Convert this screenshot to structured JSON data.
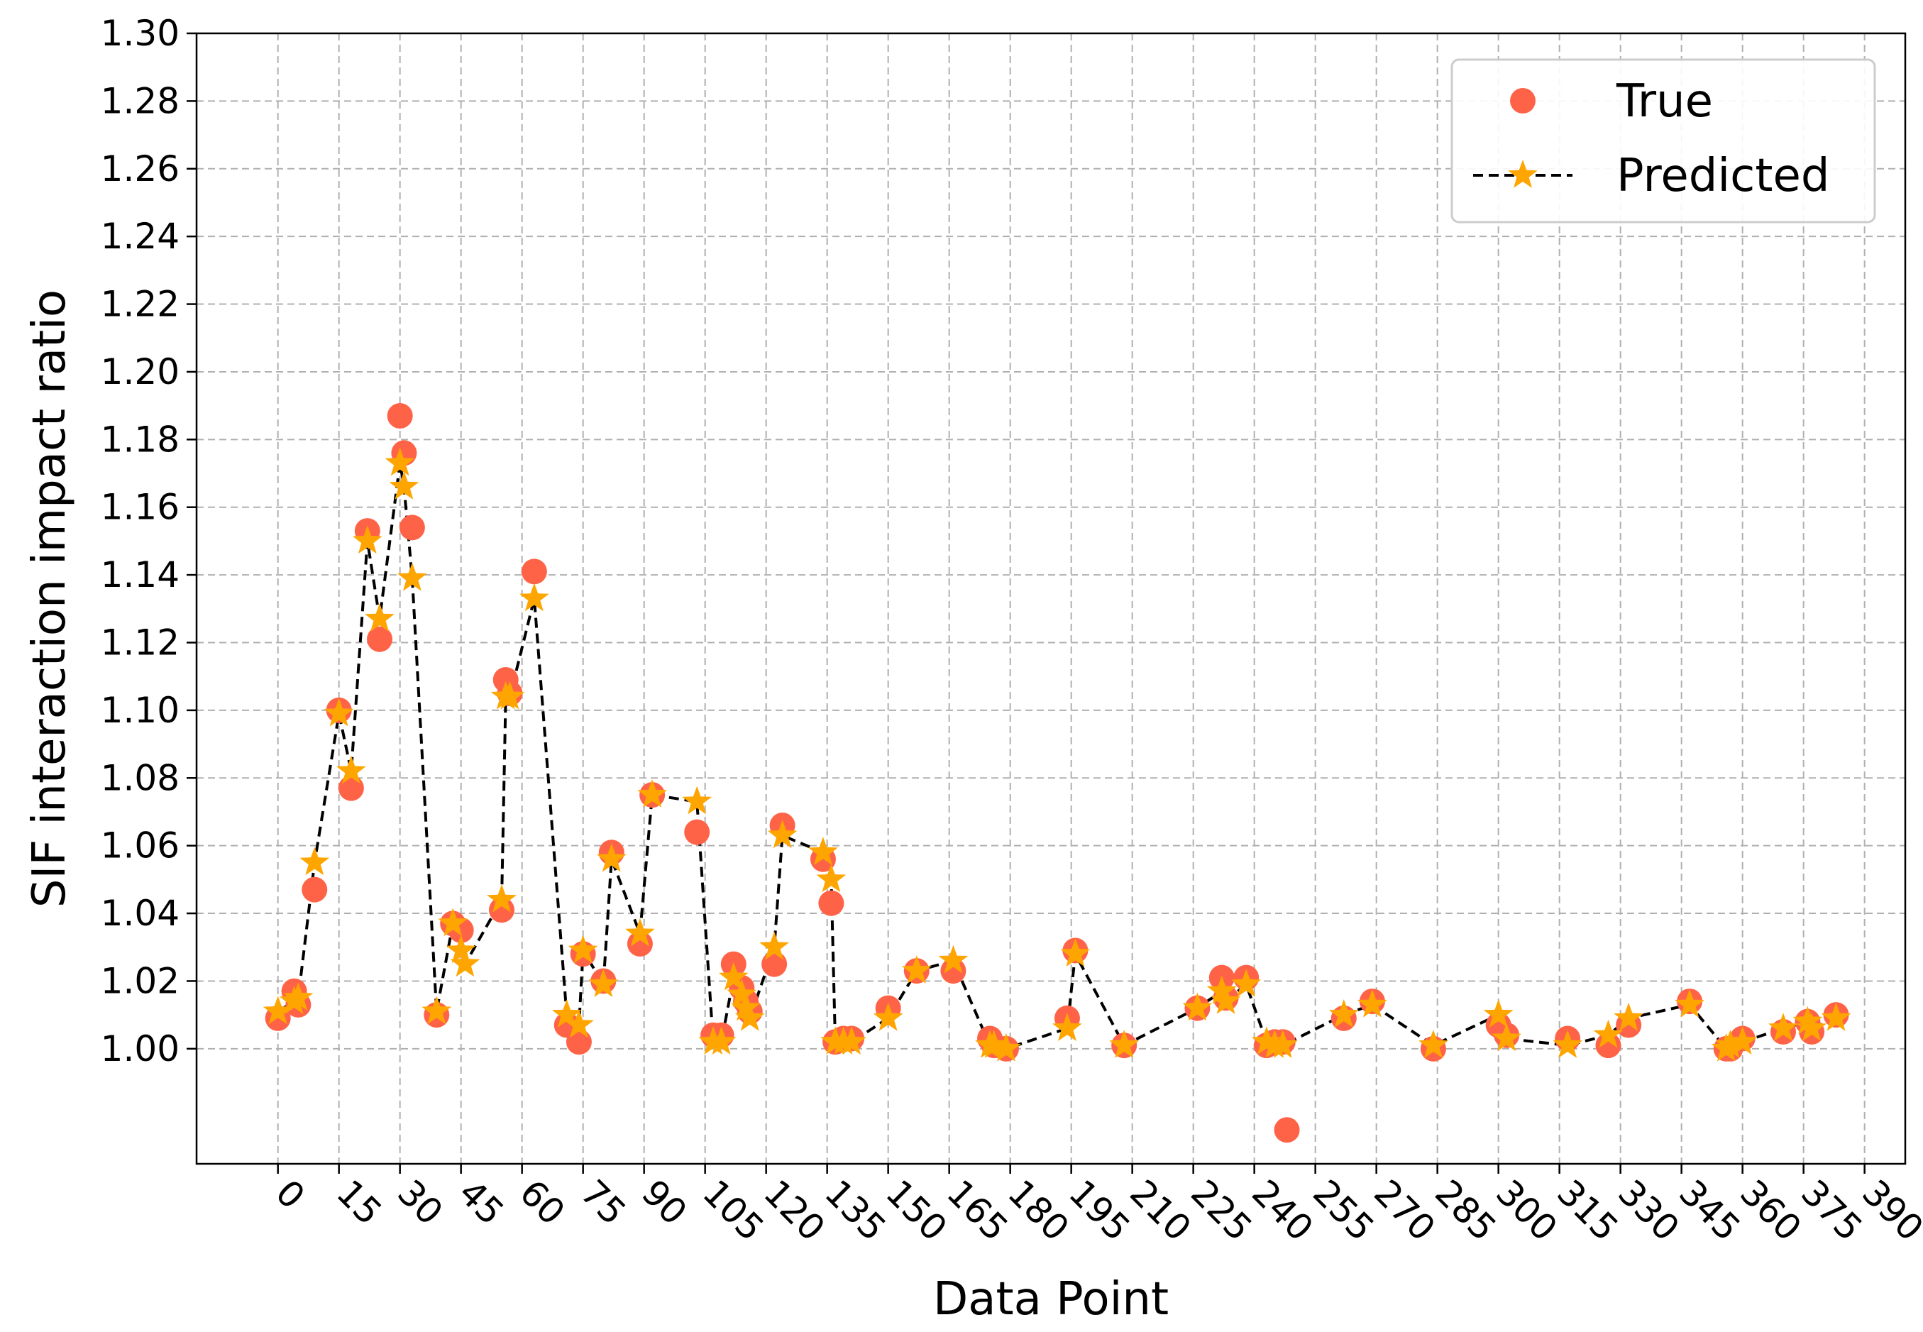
{
  "chart_data": {
    "type": "scatter",
    "title": "",
    "xlabel": "Data Point",
    "ylabel": "SIF interaction impact ratio",
    "xlim": [
      -20,
      400
    ],
    "ylim": [
      0.966,
      1.3
    ],
    "xticks": [
      0,
      15,
      30,
      45,
      60,
      75,
      90,
      105,
      120,
      135,
      150,
      165,
      180,
      195,
      210,
      225,
      240,
      255,
      270,
      285,
      300,
      315,
      330,
      345,
      360,
      375,
      390
    ],
    "yticks": [
      "1.00",
      "1.02",
      "1.04",
      "1.06",
      "1.08",
      "1.10",
      "1.12",
      "1.14",
      "1.16",
      "1.18",
      "1.20",
      "1.22",
      "1.24",
      "1.26",
      "1.28",
      "1.30"
    ],
    "grid": true,
    "legend_position": "top-right",
    "colors": {
      "true": "#ff6347",
      "predicted_line": "#000000",
      "predicted_marker": "#ffa500"
    },
    "series": [
      {
        "name": "True",
        "style": "circle",
        "points": [
          [
            0,
            1.009
          ],
          [
            4,
            1.017
          ],
          [
            5,
            1.013
          ],
          [
            9,
            1.047
          ],
          [
            15,
            1.1
          ],
          [
            18,
            1.077
          ],
          [
            22,
            1.153
          ],
          [
            25,
            1.121
          ],
          [
            30,
            1.187
          ],
          [
            31,
            1.176
          ],
          [
            33,
            1.154
          ],
          [
            39,
            1.01
          ],
          [
            43,
            1.037
          ],
          [
            45,
            1.035
          ],
          [
            55,
            1.041
          ],
          [
            56,
            1.109
          ],
          [
            57,
            1.105
          ],
          [
            63,
            1.141
          ],
          [
            71,
            1.007
          ],
          [
            74,
            1.002
          ],
          [
            75,
            1.028
          ],
          [
            80,
            1.02
          ],
          [
            82,
            1.058
          ],
          [
            89,
            1.031
          ],
          [
            92,
            1.075
          ],
          [
            103,
            1.064
          ],
          [
            107,
            1.004
          ],
          [
            109,
            1.004
          ],
          [
            112,
            1.025
          ],
          [
            114,
            1.018
          ],
          [
            115,
            1.014
          ],
          [
            116,
            1.011
          ],
          [
            122,
            1.025
          ],
          [
            124,
            1.066
          ],
          [
            134,
            1.056
          ],
          [
            136,
            1.043
          ],
          [
            137,
            1.002
          ],
          [
            139,
            1.003
          ],
          [
            141,
            1.003
          ],
          [
            150,
            1.012
          ],
          [
            157,
            1.023
          ],
          [
            166,
            1.023
          ],
          [
            175,
            1.003
          ],
          [
            176,
            1.001
          ],
          [
            179,
            1.0
          ],
          [
            194,
            1.009
          ],
          [
            196,
            1.029
          ],
          [
            208,
            1.001
          ],
          [
            226,
            1.012
          ],
          [
            232,
            1.021
          ],
          [
            233,
            1.015
          ],
          [
            238,
            1.021
          ],
          [
            243,
            1.001
          ],
          [
            245,
            1.002
          ],
          [
            247,
            1.002
          ],
          [
            248,
            0.976
          ],
          [
            262,
            1.009
          ],
          [
            269,
            1.014
          ],
          [
            284,
            1.0
          ],
          [
            300,
            1.007
          ],
          [
            302,
            1.004
          ],
          [
            317,
            1.003
          ],
          [
            327,
            1.001
          ],
          [
            332,
            1.007
          ],
          [
            347,
            1.014
          ],
          [
            356,
            1.0
          ],
          [
            357,
            1.0
          ],
          [
            360,
            1.003
          ],
          [
            370,
            1.005
          ],
          [
            376,
            1.008
          ],
          [
            377,
            1.005
          ],
          [
            383,
            1.01
          ]
        ]
      },
      {
        "name": "Predicted",
        "style": "dashed-line-star",
        "points": [
          [
            0,
            1.011
          ],
          [
            4,
            1.014
          ],
          [
            5,
            1.015
          ],
          [
            9,
            1.055
          ],
          [
            15,
            1.099
          ],
          [
            18,
            1.082
          ],
          [
            22,
            1.15
          ],
          [
            25,
            1.127
          ],
          [
            30,
            1.173
          ],
          [
            31,
            1.166
          ],
          [
            33,
            1.139
          ],
          [
            39,
            1.011
          ],
          [
            43,
            1.037
          ],
          [
            45,
            1.029
          ],
          [
            46,
            1.025
          ],
          [
            55,
            1.044
          ],
          [
            56,
            1.104
          ],
          [
            57,
            1.104
          ],
          [
            63,
            1.133
          ],
          [
            71,
            1.01
          ],
          [
            74,
            1.007
          ],
          [
            75,
            1.029
          ],
          [
            80,
            1.019
          ],
          [
            82,
            1.056
          ],
          [
            89,
            1.034
          ],
          [
            92,
            1.075
          ],
          [
            103,
            1.073
          ],
          [
            107,
            1.002
          ],
          [
            109,
            1.002
          ],
          [
            112,
            1.021
          ],
          [
            114,
            1.016
          ],
          [
            115,
            1.012
          ],
          [
            116,
            1.009
          ],
          [
            122,
            1.03
          ],
          [
            124,
            1.063
          ],
          [
            134,
            1.058
          ],
          [
            136,
            1.05
          ],
          [
            137,
            1.002
          ],
          [
            139,
            1.002
          ],
          [
            141,
            1.002
          ],
          [
            150,
            1.009
          ],
          [
            157,
            1.023
          ],
          [
            166,
            1.026
          ],
          [
            175,
            1.001
          ],
          [
            176,
            1.001
          ],
          [
            179,
            1.0
          ],
          [
            194,
            1.006
          ],
          [
            196,
            1.028
          ],
          [
            208,
            1.001
          ],
          [
            226,
            1.012
          ],
          [
            232,
            1.017
          ],
          [
            233,
            1.014
          ],
          [
            238,
            1.019
          ],
          [
            243,
            1.002
          ],
          [
            245,
            1.001
          ],
          [
            247,
            1.001
          ],
          [
            262,
            1.01
          ],
          [
            269,
            1.013
          ],
          [
            284,
            1.001
          ],
          [
            300,
            1.01
          ],
          [
            302,
            1.003
          ],
          [
            317,
            1.001
          ],
          [
            327,
            1.004
          ],
          [
            332,
            1.009
          ],
          [
            347,
            1.013
          ],
          [
            356,
            1.0
          ],
          [
            357,
            1.001
          ],
          [
            360,
            1.002
          ],
          [
            370,
            1.006
          ],
          [
            376,
            1.008
          ],
          [
            377,
            1.006
          ],
          [
            383,
            1.009
          ]
        ]
      }
    ]
  }
}
